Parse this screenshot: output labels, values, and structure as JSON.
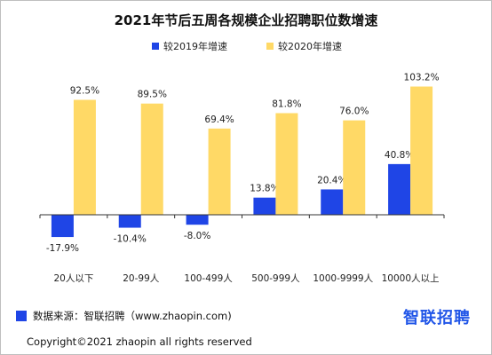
{
  "colors": {
    "series1": "#1f45e6",
    "series2": "#ffd966",
    "axis": "#333333"
  },
  "chart_data": {
    "type": "bar",
    "title": "2021年节后五周各规模企业招聘职位数增速",
    "categories": [
      "20人以下",
      "20-99人",
      "100-499人",
      "500-999人",
      "1000-9999人",
      "10000人以上"
    ],
    "series": [
      {
        "name": "较2019年增速",
        "values": [
          -17.9,
          -10.4,
          -8.0,
          13.8,
          20.4,
          40.8
        ],
        "labels": [
          "-17.9%",
          "-10.4%",
          "-8.0%",
          "13.8%",
          "20.4%",
          "40.8%"
        ]
      },
      {
        "name": "较2020年增速",
        "values": [
          92.5,
          89.5,
          69.4,
          81.8,
          76.0,
          103.2
        ],
        "labels": [
          "92.5%",
          "89.5%",
          "69.4%",
          "81.8%",
          "76.0%",
          "103.2%"
        ]
      }
    ],
    "xlabel": "",
    "ylabel": "",
    "ylim": [
      -25,
      110
    ],
    "grid": false,
    "legend": "top-center"
  },
  "footer": {
    "source": "数据来源：智联招聘（www.zhaopin.com)",
    "logo": "智联招聘",
    "copyright": "Copyright©2021 zhaopin all rights reserved"
  }
}
